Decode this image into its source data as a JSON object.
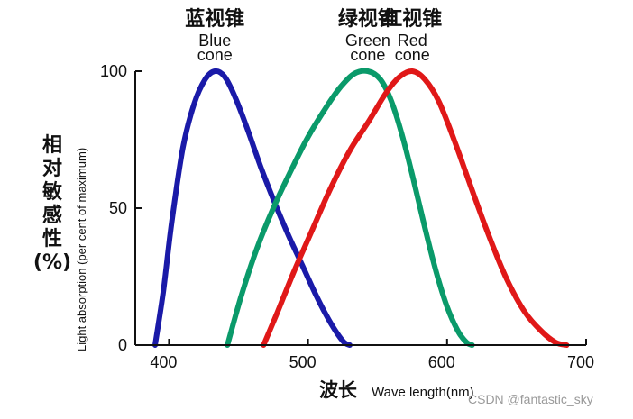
{
  "chart_data": {
    "type": "line",
    "xlabel_cn": "波长",
    "xlabel_en": "Wave length(nm)",
    "ylabel_cn_lines": [
      "相",
      "对",
      "敏",
      "感",
      "性",
      "(%)"
    ],
    "ylabel_en": "Light absorption (per cent of maximum)",
    "xlim": [
      390,
      700
    ],
    "ylim": [
      0,
      100
    ],
    "x_ticks": [
      {
        "value": 400,
        "label": "400"
      },
      {
        "value": 500,
        "label": "500"
      },
      {
        "value": 600,
        "label": "600"
      },
      {
        "value": 700,
        "label": "700"
      }
    ],
    "y_ticks": [
      {
        "value": 0,
        "label": "0"
      },
      {
        "value": 50,
        "label": "50"
      },
      {
        "value": 100,
        "label": "100"
      }
    ],
    "series": [
      {
        "name_cn": "蓝视锥",
        "name_en": [
          "Blue",
          "cone"
        ],
        "color": "#1a1aa8",
        "points": [
          [
            390,
            0
          ],
          [
            396,
            20
          ],
          [
            402,
            45
          ],
          [
            410,
            72
          ],
          [
            418,
            88
          ],
          [
            426,
            97
          ],
          [
            433,
            100
          ],
          [
            440,
            98
          ],
          [
            448,
            90
          ],
          [
            457,
            78
          ],
          [
            466,
            65
          ],
          [
            476,
            52
          ],
          [
            486,
            40
          ],
          [
            496,
            29
          ],
          [
            505,
            19
          ],
          [
            513,
            11
          ],
          [
            520,
            5
          ],
          [
            526,
            1
          ],
          [
            530,
            0
          ]
        ]
      },
      {
        "name_cn": "绿视锥",
        "name_en": [
          "Green",
          "cone"
        ],
        "color": "#0a9a6a",
        "points": [
          [
            442,
            0
          ],
          [
            452,
            18
          ],
          [
            463,
            35
          ],
          [
            475,
            50
          ],
          [
            488,
            64
          ],
          [
            500,
            76
          ],
          [
            512,
            86
          ],
          [
            523,
            94
          ],
          [
            533,
            99
          ],
          [
            543,
            100
          ],
          [
            552,
            97
          ],
          [
            560,
            89
          ],
          [
            568,
            76
          ],
          [
            576,
            60
          ],
          [
            584,
            43
          ],
          [
            592,
            27
          ],
          [
            600,
            14
          ],
          [
            608,
            5
          ],
          [
            614,
            1
          ],
          [
            618,
            0
          ]
        ]
      },
      {
        "name_cn": "红视锥",
        "name_en": [
          "Red",
          "cone"
        ],
        "color": "#e01818",
        "points": [
          [
            468,
            0
          ],
          [
            478,
            12
          ],
          [
            490,
            27
          ],
          [
            503,
            42
          ],
          [
            516,
            57
          ],
          [
            530,
            71
          ],
          [
            544,
            82
          ],
          [
            556,
            92
          ],
          [
            566,
            98
          ],
          [
            575,
            100
          ],
          [
            584,
            97
          ],
          [
            594,
            89
          ],
          [
            605,
            75
          ],
          [
            617,
            58
          ],
          [
            630,
            40
          ],
          [
            643,
            24
          ],
          [
            656,
            12
          ],
          [
            668,
            5
          ],
          [
            678,
            1
          ],
          [
            686,
            0
          ]
        ]
      }
    ],
    "grid": false
  },
  "watermark": "CSDN @fantastic_sky"
}
